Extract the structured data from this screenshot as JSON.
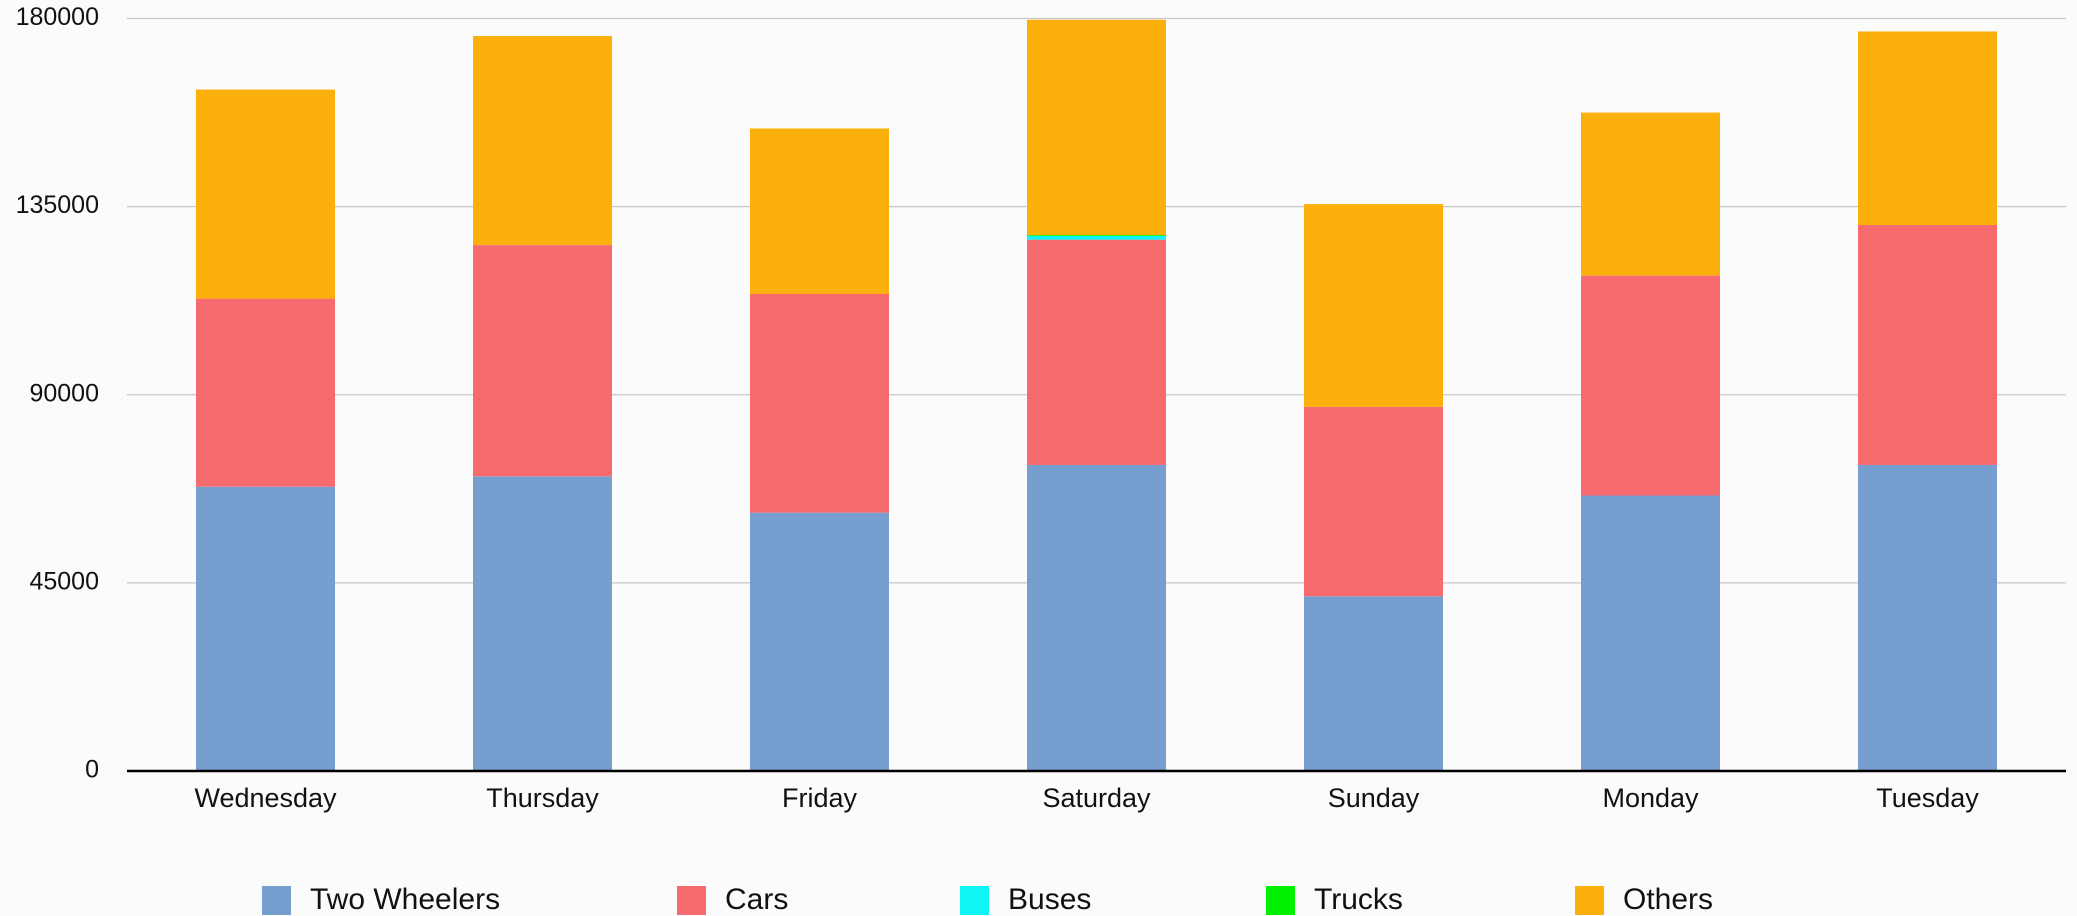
{
  "chart_data": {
    "type": "stacked_bar",
    "categories": [
      "Wednesday",
      "Thursday",
      "Friday",
      "Saturday",
      "Sunday",
      "Monday",
      "Tuesday"
    ],
    "series": [
      {
        "name": "Two Wheelers",
        "color": "#769ecf",
        "values": [
          68000,
          70500,
          61800,
          73200,
          41800,
          65900,
          73200
        ]
      },
      {
        "name": "Cars",
        "color": "#f76b6f",
        "values": [
          45000,
          55300,
          52300,
          53900,
          45300,
          52600,
          57400
        ]
      },
      {
        "name": "Buses",
        "color": "#0ff5f5",
        "values": [
          0,
          0,
          0,
          900,
          0,
          0,
          0
        ]
      },
      {
        "name": "Trucks",
        "color": "#00f000",
        "values": [
          0,
          0,
          0,
          200,
          0,
          0,
          0
        ]
      },
      {
        "name": "Others",
        "color": "#fcb00b",
        "values": [
          50000,
          50000,
          39600,
          51500,
          48500,
          39000,
          46300
        ]
      }
    ],
    "ylim": [
      0,
      180000
    ],
    "yticks": [
      0,
      45000,
      90000,
      135000,
      180000
    ],
    "grid": true,
    "legend": "bottom"
  }
}
